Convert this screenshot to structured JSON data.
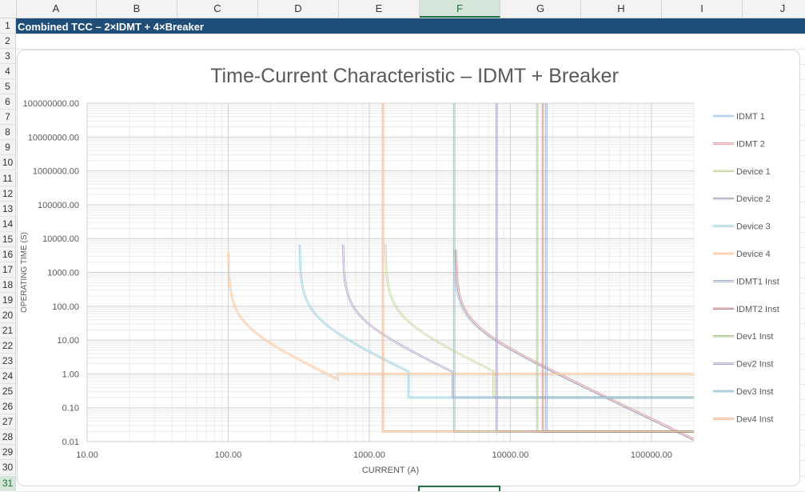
{
  "spreadsheet": {
    "columns": [
      "A",
      "B",
      "C",
      "D",
      "E",
      "F",
      "G",
      "H",
      "I",
      "J"
    ],
    "selected_column": "F",
    "rows": [
      "1",
      "2",
      "3",
      "4",
      "5",
      "6",
      "7",
      "8",
      "9",
      "10",
      "11",
      "12",
      "13",
      "14",
      "15",
      "16",
      "17",
      "18",
      "19",
      "20",
      "21",
      "22",
      "23",
      "24",
      "25",
      "26",
      "27",
      "28",
      "29",
      "30",
      "31"
    ],
    "selected_row": "31",
    "a1_text": "Combined TCC – 2×IDMT + 4×Breaker"
  },
  "chart_data": {
    "type": "line",
    "title": "Time-Current Characteristic – IDMT + Breaker",
    "xlabel": "CURRENT (A)",
    "ylabel": "OPERATING TIME (S)",
    "x_scale": "log",
    "y_scale": "log",
    "xlim": [
      10,
      200000
    ],
    "ylim": [
      0.01,
      100000000
    ],
    "x_ticks": [
      "10.00",
      "100.00",
      "1000.00",
      "10000.00",
      "100000.00"
    ],
    "y_ticks": [
      "0.01",
      "0.10",
      "1.00",
      "10.00",
      "100.00",
      "1000.00",
      "10000.00",
      "100000.00",
      "1000000.00",
      "10000000.00",
      "100000000.00"
    ],
    "grid": true,
    "legend_position": "right",
    "series": [
      {
        "name": "IDMT 1",
        "color": "#5b9bd5",
        "pickup": 4000,
        "tms": 0.35,
        "inst": null,
        "inst_time": null
      },
      {
        "name": "IDMT 2",
        "color": "#c0504d",
        "pickup": 4100,
        "tms": 0.35,
        "inst": null,
        "inst_time": null
      },
      {
        "name": "Device 1",
        "color": "#9bbb59",
        "pickup": 1300,
        "tms": 0.5,
        "inst": 7600,
        "inst_time": 0.2
      },
      {
        "name": "Device 2",
        "color": "#8064a2",
        "pickup": 650,
        "tms": 0.5,
        "inst": 3900,
        "inst_time": 0.2
      },
      {
        "name": "Device 3",
        "color": "#4bacc6",
        "pickup": 320,
        "tms": 0.5,
        "inst": 1900,
        "inst_time": 0.2
      },
      {
        "name": "Device 4",
        "color": "#f79646",
        "pickup": 100,
        "tms": 0.3,
        "inst": 600,
        "inst_time": 1.0
      },
      {
        "name": "IDMT1 Inst",
        "color": "#4f6fa8",
        "inst": 18000,
        "inst_time": 0.02
      },
      {
        "name": "IDMT2 Inst",
        "color": "#a1403d",
        "inst": 17000,
        "inst_time": 0.02
      },
      {
        "name": "Dev1 Inst",
        "color": "#7a9a48",
        "inst": 15500,
        "inst_time": 0.02
      },
      {
        "name": "Dev2 Inst",
        "color": "#6a5290",
        "inst": 8000,
        "inst_time": 0.02
      },
      {
        "name": "Dev3 Inst",
        "color": "#3a8fa8",
        "inst": 4000,
        "inst_time": 0.02
      },
      {
        "name": "Dev4 Inst",
        "color": "#e07a30",
        "inst": 1250,
        "inst_time": 0.02
      }
    ]
  }
}
